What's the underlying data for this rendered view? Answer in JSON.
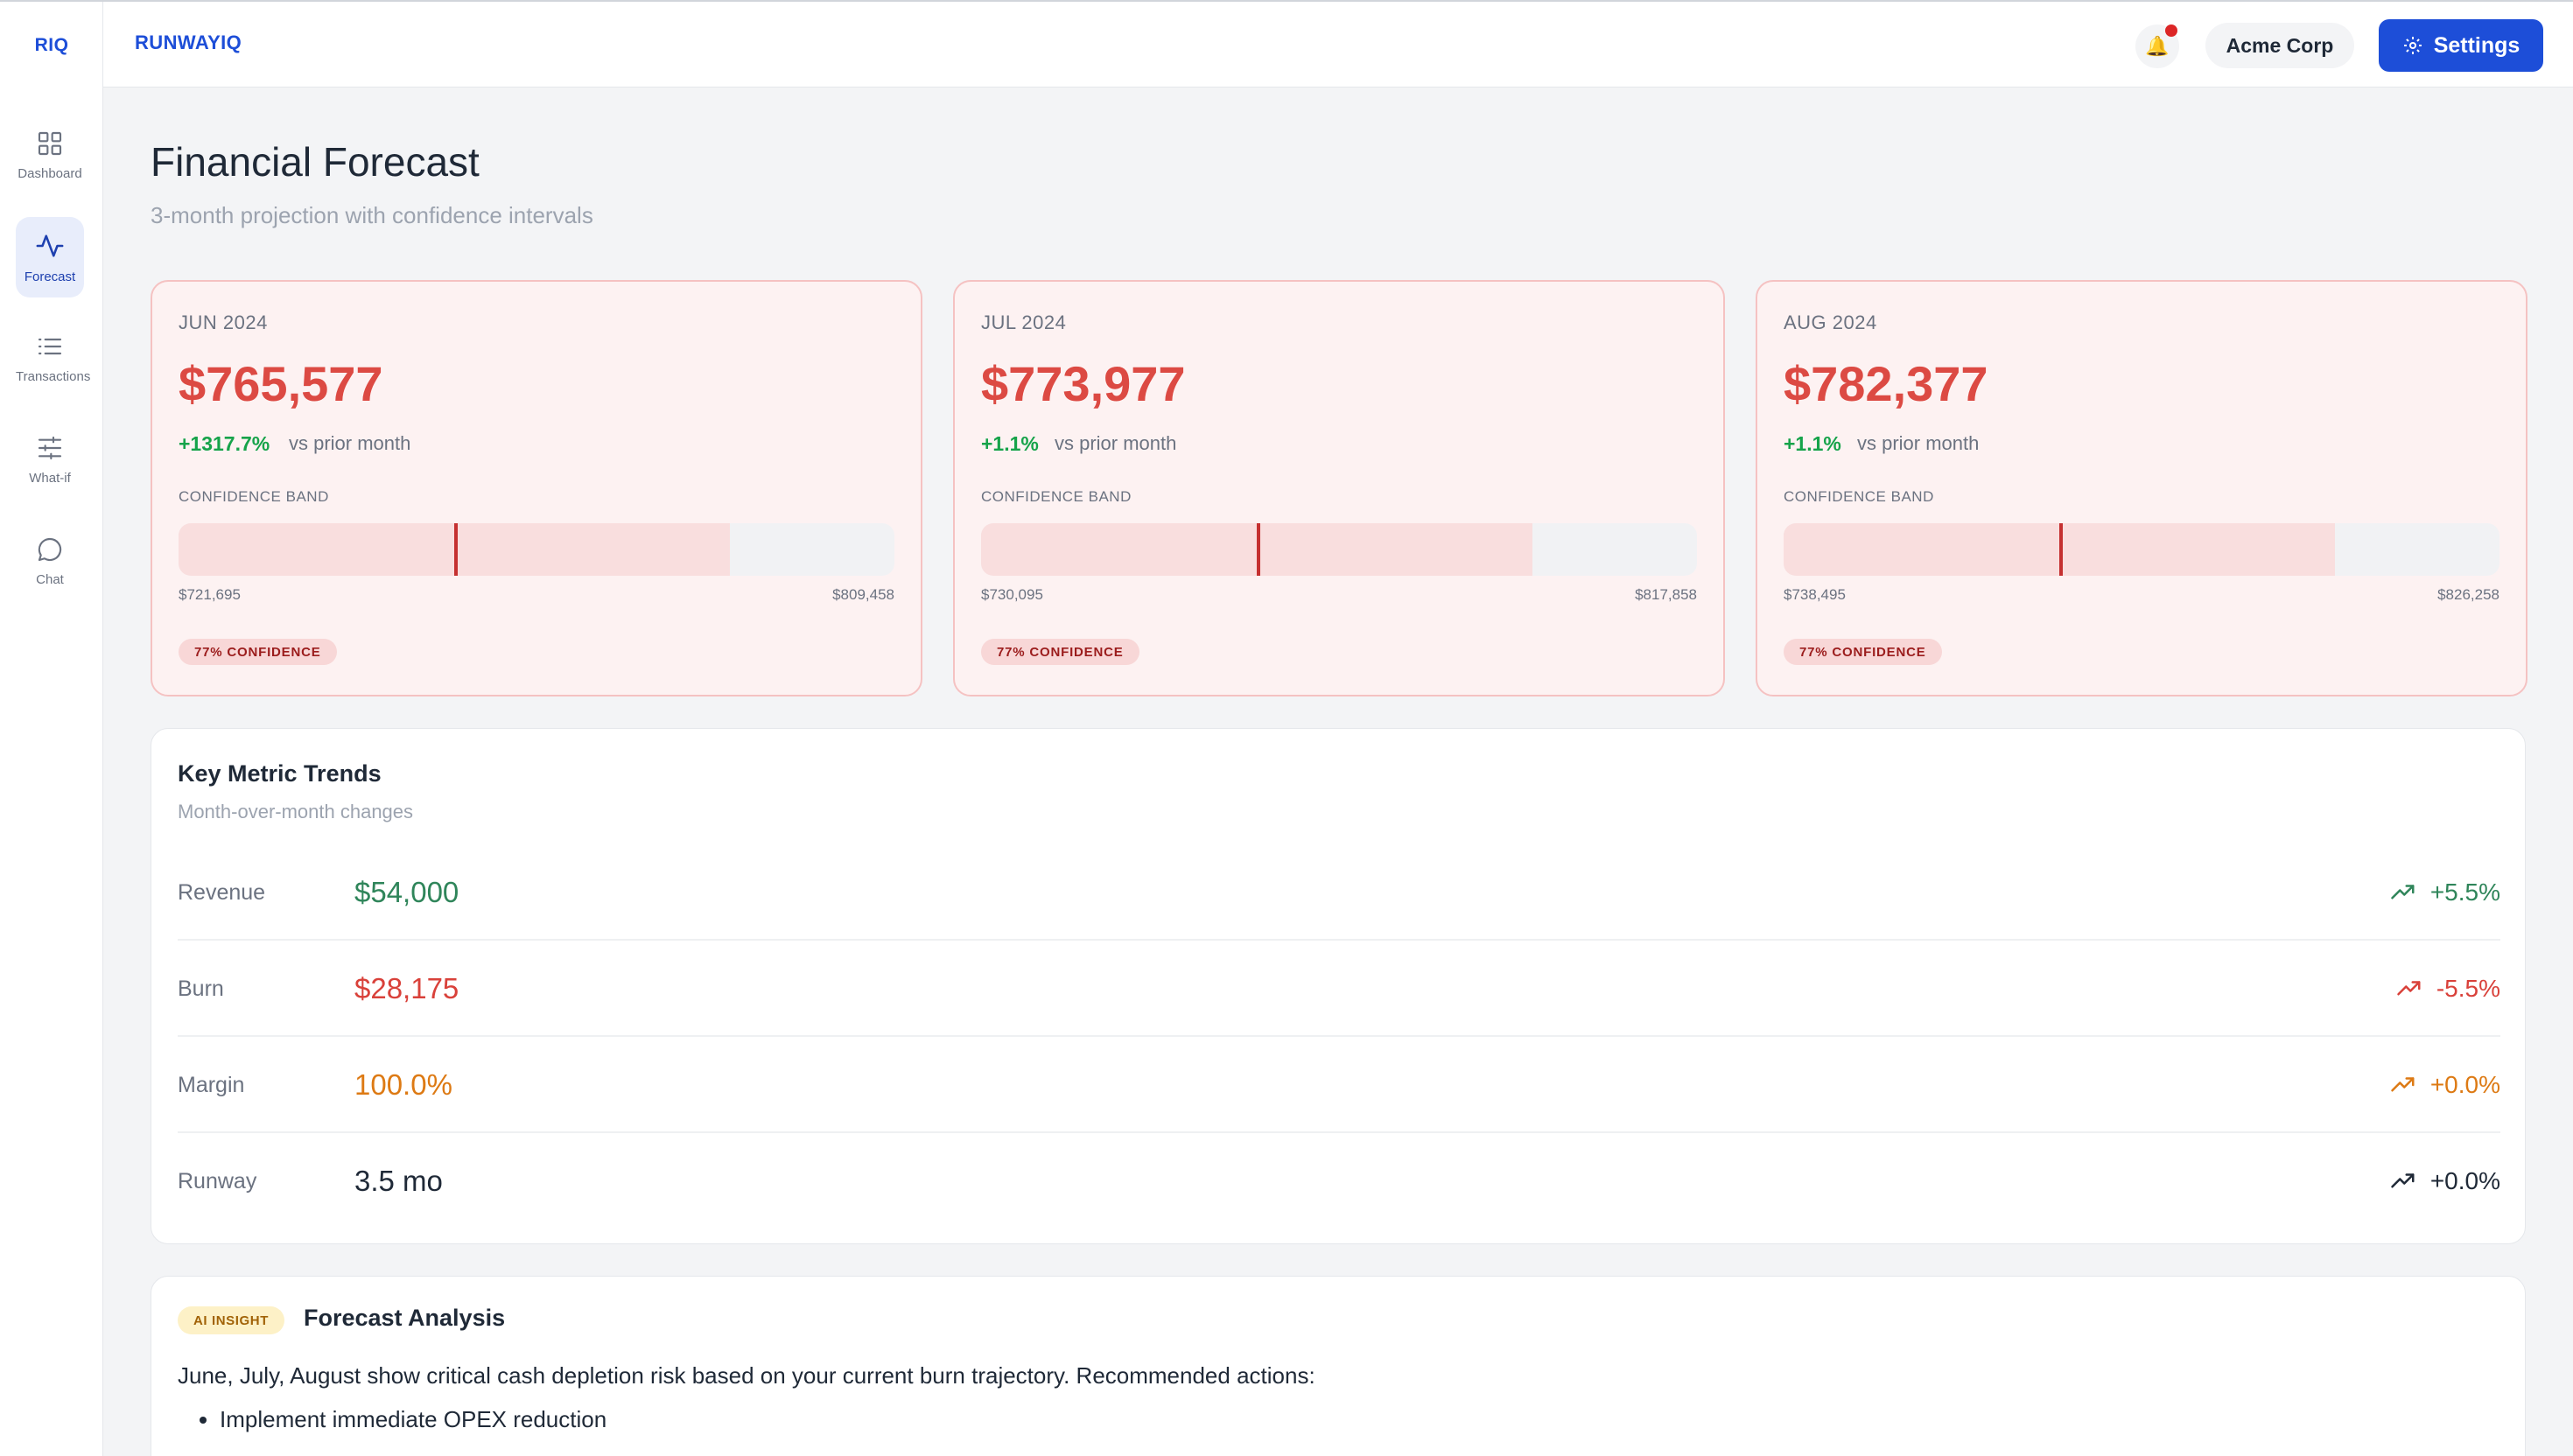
{
  "sidebar": {
    "logo": "RIQ",
    "items": [
      {
        "label": "Dashboard",
        "icon": "grid-icon"
      },
      {
        "label": "Forecast",
        "icon": "activity-icon",
        "active": true
      },
      {
        "label": "Transactions",
        "icon": "list-icon"
      },
      {
        "label": "What-if",
        "icon": "sliders-icon"
      },
      {
        "label": "Chat",
        "icon": "chat-icon"
      }
    ]
  },
  "topbar": {
    "brand": "RUNWAYIQ",
    "notification_icon": "bell-icon",
    "company": "Acme Corp",
    "settings_label": "Settings"
  },
  "page": {
    "title": "Financial Forecast",
    "subtitle": "3-month projection with confidence intervals"
  },
  "forecast_cards": [
    {
      "month": "JUN 2024",
      "amount": "$765,577",
      "delta": "+1317.7%",
      "vs": "vs prior month",
      "band_label": "CONFIDENCE BAND",
      "low": "$721,695",
      "high": "$809,458",
      "low_value": 721695,
      "high_value": 809458,
      "point_value": 765577,
      "confidence": "77% CONFIDENCE"
    },
    {
      "month": "JUL 2024",
      "amount": "$773,977",
      "delta": "+1.1%",
      "vs": "vs prior month",
      "band_label": "CONFIDENCE BAND",
      "low": "$730,095",
      "high": "$817,858",
      "low_value": 730095,
      "high_value": 817858,
      "point_value": 773977,
      "confidence": "77% CONFIDENCE"
    },
    {
      "month": "AUG 2024",
      "amount": "$782,377",
      "delta": "+1.1%",
      "vs": "vs prior month",
      "band_label": "CONFIDENCE BAND",
      "low": "$738,495",
      "high": "$826,258",
      "low_value": 738495,
      "high_value": 826258,
      "point_value": 782377,
      "confidence": "77% CONFIDENCE"
    }
  ],
  "trends": {
    "title": "Key Metric Trends",
    "subtitle": "Month-over-month changes",
    "rows": [
      {
        "name": "Revenue",
        "value": "$54,000",
        "change": "+5.5%",
        "color": "#2f855a"
      },
      {
        "name": "Burn",
        "value": "$28,175",
        "change": "-5.5%",
        "color": "#d9413a"
      },
      {
        "name": "Margin",
        "value": "100.0%",
        "change": "+0.0%",
        "color": "#dd7a14"
      },
      {
        "name": "Runway",
        "value": "3.5 mo",
        "change": "+0.0%",
        "color": "#1f2937"
      }
    ]
  },
  "insight": {
    "badge": "AI INSIGHT",
    "title": "Forecast Analysis",
    "body": "June, July, August show critical cash depletion risk based on your current burn trajectory. Recommended actions:",
    "actions": [
      "Implement immediate OPEX reduction"
    ]
  },
  "colors": {
    "accent": "#1d4ed8",
    "forecast_amount": "#dc4a43",
    "positive": "#16a34a"
  }
}
